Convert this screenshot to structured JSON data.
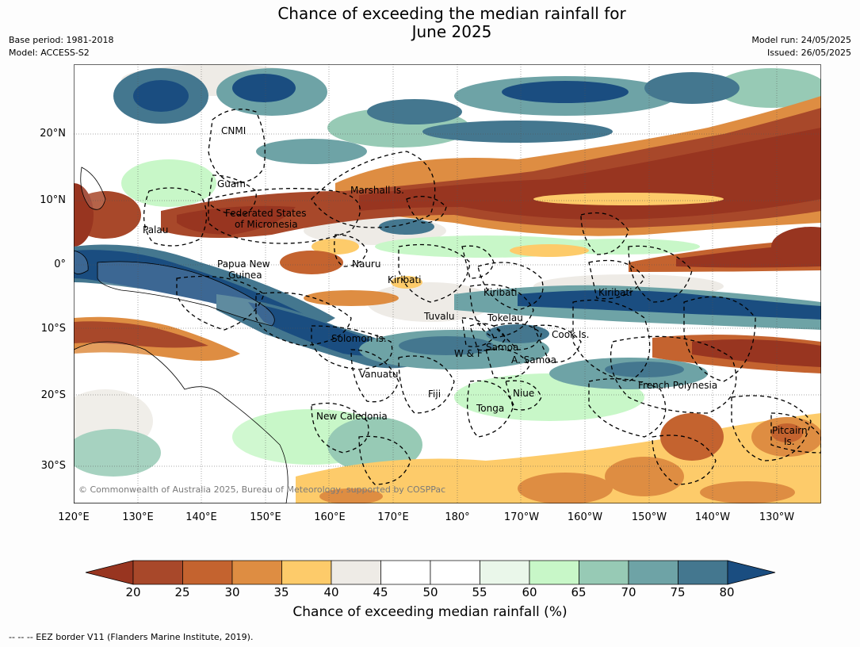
{
  "title_line1": "Chance of exceeding the median rainfall for",
  "title_line2": "June 2025",
  "meta_left": {
    "base_period": "Base period: 1981-2018",
    "model": "Model: ACCESS-S2"
  },
  "meta_right": {
    "model_run": "Model run: 24/05/2025",
    "issued": "Issued: 26/05/2025"
  },
  "copyright": "© Commonwealth of Australia 2025, Bureau of Meteorology, supported by COSPPac",
  "lat_labels": [
    "20°N",
    "10°N",
    "0°",
    "10°S",
    "20°S",
    "30°S"
  ],
  "lon_labels": [
    "120°E",
    "130°E",
    "140°E",
    "150°E",
    "160°E",
    "170°E",
    "180°",
    "170°W",
    "160°W",
    "150°W",
    "140°W",
    "130°W"
  ],
  "regions": {
    "cnmi": "CNMI",
    "guam": "Guam",
    "marshall": "Marshall Is.",
    "fsm1": "Federated States",
    "fsm2": "of Micronesia",
    "palau": "Palau",
    "png1": "Papua New",
    "png2": "Guinea",
    "nauru": "Nauru",
    "kiribati_w": "Kiribati",
    "kiribati_c": "Kiribati",
    "kiribati_e": "Kiribati",
    "tuvalu": "Tuvalu",
    "tokelau": "Tokelau",
    "cook": "Cook Is.",
    "solomon": "Solomon Is.",
    "wf": "W & F",
    "samoa": "Samoa",
    "asamoa": "A. Samoa",
    "vanuatu": "Vanuatu",
    "fiji": "Fiji",
    "niue": "Niue",
    "tonga": "Tonga",
    "frpoly": "French Polynesia",
    "newcal": "New Caledonia",
    "pitcairn1": "Pitcairn",
    "pitcairn2": "Is."
  },
  "colorbar": {
    "ticks": [
      "20",
      "25",
      "30",
      "35",
      "40",
      "45",
      "50",
      "55",
      "60",
      "65",
      "70",
      "75",
      "80"
    ],
    "colors": [
      "#a8482a",
      "#c4632f",
      "#de8d42",
      "#fdcb6a",
      "#eeebe6",
      "#ffffff",
      "#ffffff",
      "#eaf7ea",
      "#c8f7c8",
      "#97cab5",
      "#6ea3a6",
      "#44778f"
    ],
    "low_color": "#983520",
    "high_color": "#1a4d80",
    "label": "Chance of exceeding median rainfall (%)"
  },
  "footnote": "--  --  -- EEZ border V11 (Flanders Marine Institute, 2019)."
}
